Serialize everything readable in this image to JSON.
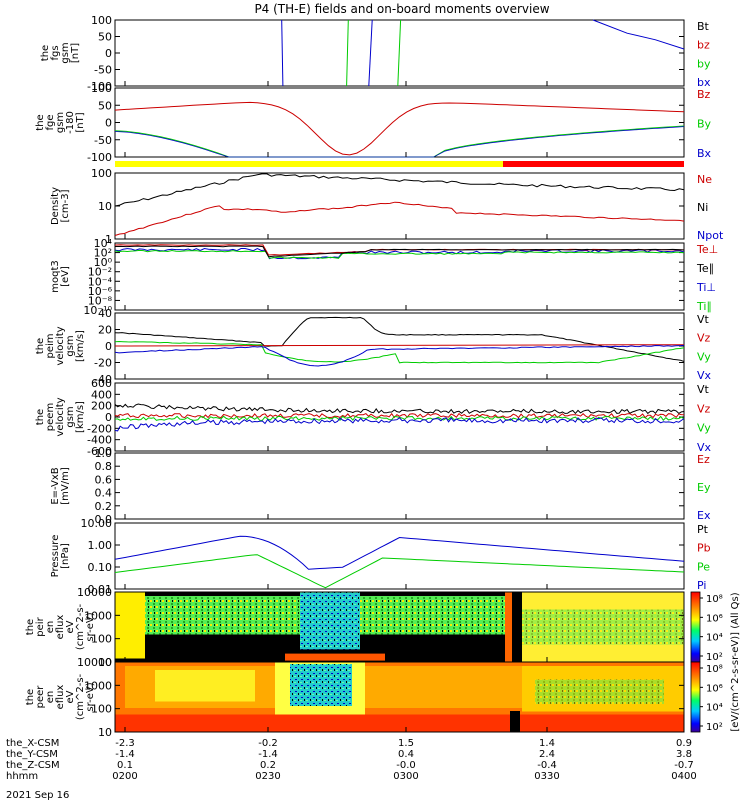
{
  "title": "P4 (TH-E) fields and on-board moments overview",
  "colors": {
    "black": "#000000",
    "red": "#cc0000",
    "green": "#00cc00",
    "blue": "#0000cc",
    "yellow": "#ffff00",
    "barred": "#ff0000"
  },
  "chart_data": [
    {
      "id": "fgs",
      "type": "line",
      "ylabel": [
        "the",
        "fgs",
        "gsm",
        "[nT]"
      ],
      "yticks": [
        "100",
        "50",
        "0",
        "-50",
        "-100"
      ],
      "ylim": [
        -100,
        100
      ],
      "legend": [
        {
          "name": "Bt",
          "color": "#000000"
        },
        {
          "name": "bz",
          "color": "#cc0000"
        },
        {
          "name": "by",
          "color": "#00cc00"
        },
        {
          "name": "bx",
          "color": "#0000cc"
        }
      ]
    },
    {
      "id": "fge",
      "type": "line",
      "ylabel": [
        "the",
        "fge",
        "gsm",
        "-180",
        "[nT]"
      ],
      "yticks": [
        "100",
        "50",
        "0",
        "-50",
        "-100"
      ],
      "ylim": [
        -120,
        100
      ],
      "legend": [
        {
          "name": "Bz",
          "color": "#cc0000"
        },
        {
          "name": "By",
          "color": "#00cc00"
        },
        {
          "name": "Bx",
          "color": "#0000cc"
        }
      ]
    },
    {
      "id": "density",
      "type": "line",
      "yscale": "log",
      "ylabel": [
        "Density",
        "[cm-3]"
      ],
      "yticks": [
        "100",
        "10",
        "1"
      ],
      "legend": [
        {
          "name": "Ne",
          "color": "#cc0000"
        },
        {
          "name": "Ni",
          "color": "#000000"
        },
        {
          "name": "Npot",
          "color": "#0000cc"
        }
      ]
    },
    {
      "id": "temp",
      "type": "line",
      "yscale": "log",
      "ylabel": [
        "moqt3",
        "[eV]"
      ],
      "yticks": [
        "10⁴",
        "10²",
        "10⁰",
        "10⁻²",
        "10⁻⁴",
        "10⁻⁶",
        "10⁻⁸",
        "10⁻¹⁰"
      ],
      "legend": [
        {
          "name": "Te⊥",
          "color": "#cc0000"
        },
        {
          "name": "Te∥",
          "color": "#000000"
        },
        {
          "name": "Ti⊥",
          "color": "#0000cc"
        },
        {
          "name": "Ti∥",
          "color": "#00cc00"
        }
      ]
    },
    {
      "id": "peim",
      "type": "line",
      "ylabel": [
        "the",
        "peim",
        "velocity",
        "gsm",
        "[km/s]"
      ],
      "yticks": [
        "40",
        "20",
        "0",
        "-20",
        "-40"
      ],
      "legend": [
        {
          "name": "Vt",
          "color": "#000000"
        },
        {
          "name": "Vz",
          "color": "#cc0000"
        },
        {
          "name": "Vy",
          "color": "#00cc00"
        },
        {
          "name": "Vx",
          "color": "#0000cc"
        }
      ]
    },
    {
      "id": "peem",
      "type": "line",
      "ylabel": [
        "the",
        "peem",
        "velocity",
        "gsm",
        "[km/s]"
      ],
      "yticks": [
        "600",
        "400",
        "200",
        "0",
        "-200",
        "-400",
        "-600"
      ],
      "legend": [
        {
          "name": "Vt",
          "color": "#000000"
        },
        {
          "name": "Vz",
          "color": "#cc0000"
        },
        {
          "name": "Vy",
          "color": "#00cc00"
        },
        {
          "name": "Vx",
          "color": "#0000cc"
        }
      ]
    },
    {
      "id": "efield",
      "type": "line",
      "ylabel": [
        "E=-VxB",
        "[mV/m]"
      ],
      "yticks": [
        "1.0",
        "0.8",
        "0.6",
        "0.4",
        "0.2",
        "0.0"
      ],
      "legend": [
        {
          "name": "Ez",
          "color": "#cc0000"
        },
        {
          "name": "Ey",
          "color": "#00cc00"
        },
        {
          "name": "Ex",
          "color": "#0000cc"
        }
      ]
    },
    {
      "id": "pressure",
      "type": "line",
      "yscale": "log",
      "ylabel": [
        "Pressure",
        "[nPa]"
      ],
      "yticks": [
        "10.00",
        "1.00",
        "0.10",
        "0.01"
      ],
      "legend": [
        {
          "name": "Pt",
          "color": "#000000"
        },
        {
          "name": "Pb",
          "color": "#cc0000"
        },
        {
          "name": "Pe",
          "color": "#00cc00"
        },
        {
          "name": "Pi",
          "color": "#0000cc"
        }
      ]
    },
    {
      "id": "peir",
      "type": "heatmap",
      "ylabel": [
        "the",
        "peir",
        "en",
        "eflux",
        "eV",
        "(cm^2-s-",
        "sr-eV)"
      ],
      "yticks": [
        "10000",
        "1000",
        "100",
        "10"
      ]
    },
    {
      "id": "peer",
      "type": "heatmap",
      "ylabel": [
        "the",
        "peer",
        "en",
        "eflux",
        "eV",
        "(cm^2-s-",
        "sr-eV)"
      ],
      "yticks": [
        "10000",
        "1000",
        "100",
        "10"
      ]
    }
  ],
  "colorbars": [
    {
      "ticks": [
        "10⁸",
        "10⁶",
        "10⁴",
        "10²"
      ]
    },
    {
      "ticks": [
        "10⁸",
        "10⁶",
        "10⁴",
        "10²"
      ]
    }
  ],
  "colorbar_label": "[eV/(cm^2-s-sr-eV)] (All Qs)",
  "xaxis": {
    "rows": [
      {
        "label": "the_X-CSM",
        "values": [
          "-2.3",
          "-0.2",
          "1.5",
          "1.4",
          "0.9"
        ]
      },
      {
        "label": "the_Y-CSM",
        "values": [
          "-1.4",
          "-1.4",
          "0.4",
          "2.4",
          "3.8"
        ]
      },
      {
        "label": "the_Z-CSM",
        "values": [
          "0.1",
          "0.2",
          "-0.0",
          "-0.4",
          "-0.7"
        ]
      },
      {
        "label": "hhmm",
        "values": [
          "0200",
          "0230",
          "0300",
          "0330",
          "0400"
        ]
      }
    ],
    "date": "2021 Sep 16"
  }
}
